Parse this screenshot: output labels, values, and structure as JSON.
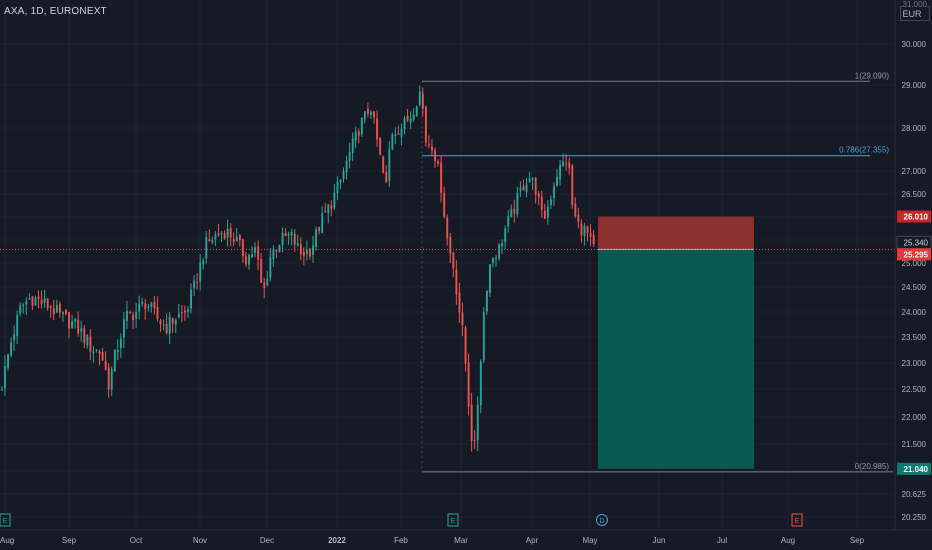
{
  "header": {
    "symbol": "AXA, 1D, EURONEXT",
    "currency": "EUR",
    "top_tick": "31.000"
  },
  "chart_data": {
    "type": "candlestick",
    "y_ticks": [
      "30.000",
      "29.000",
      "28.000",
      "27.000",
      "26.500",
      "26.000",
      "25.500",
      "25.000",
      "24.500",
      "24.000",
      "23.500",
      "23.000",
      "22.500",
      "22.000",
      "21.500",
      "21.000",
      "20.625",
      "20.250"
    ],
    "x_ticks": [
      "Aug",
      "Sep",
      "Oct",
      "Nov",
      "Dec",
      "2022",
      "Feb",
      "Mar",
      "Apr",
      "May",
      "Jun",
      "Jul",
      "Aug",
      "Sep"
    ],
    "price_labels": {
      "stop": "26.010",
      "last": "25.340",
      "entry": "25.295",
      "target": "21.040"
    },
    "fib_labels": {
      "level_1": "1(29.090)",
      "level_0786": "0.786(27.355)",
      "level_0": "0(20.985)"
    },
    "event_markers": [
      "E",
      "E",
      "D",
      "E"
    ],
    "colors": {
      "background": "#161a25",
      "up": "#26a69a",
      "down": "#ef5350",
      "stop_zone": "#8b2f2f",
      "target_zone": "#0b5a52",
      "fib_line": "#787b86",
      "fib_0786": "#4aa3d6"
    }
  }
}
